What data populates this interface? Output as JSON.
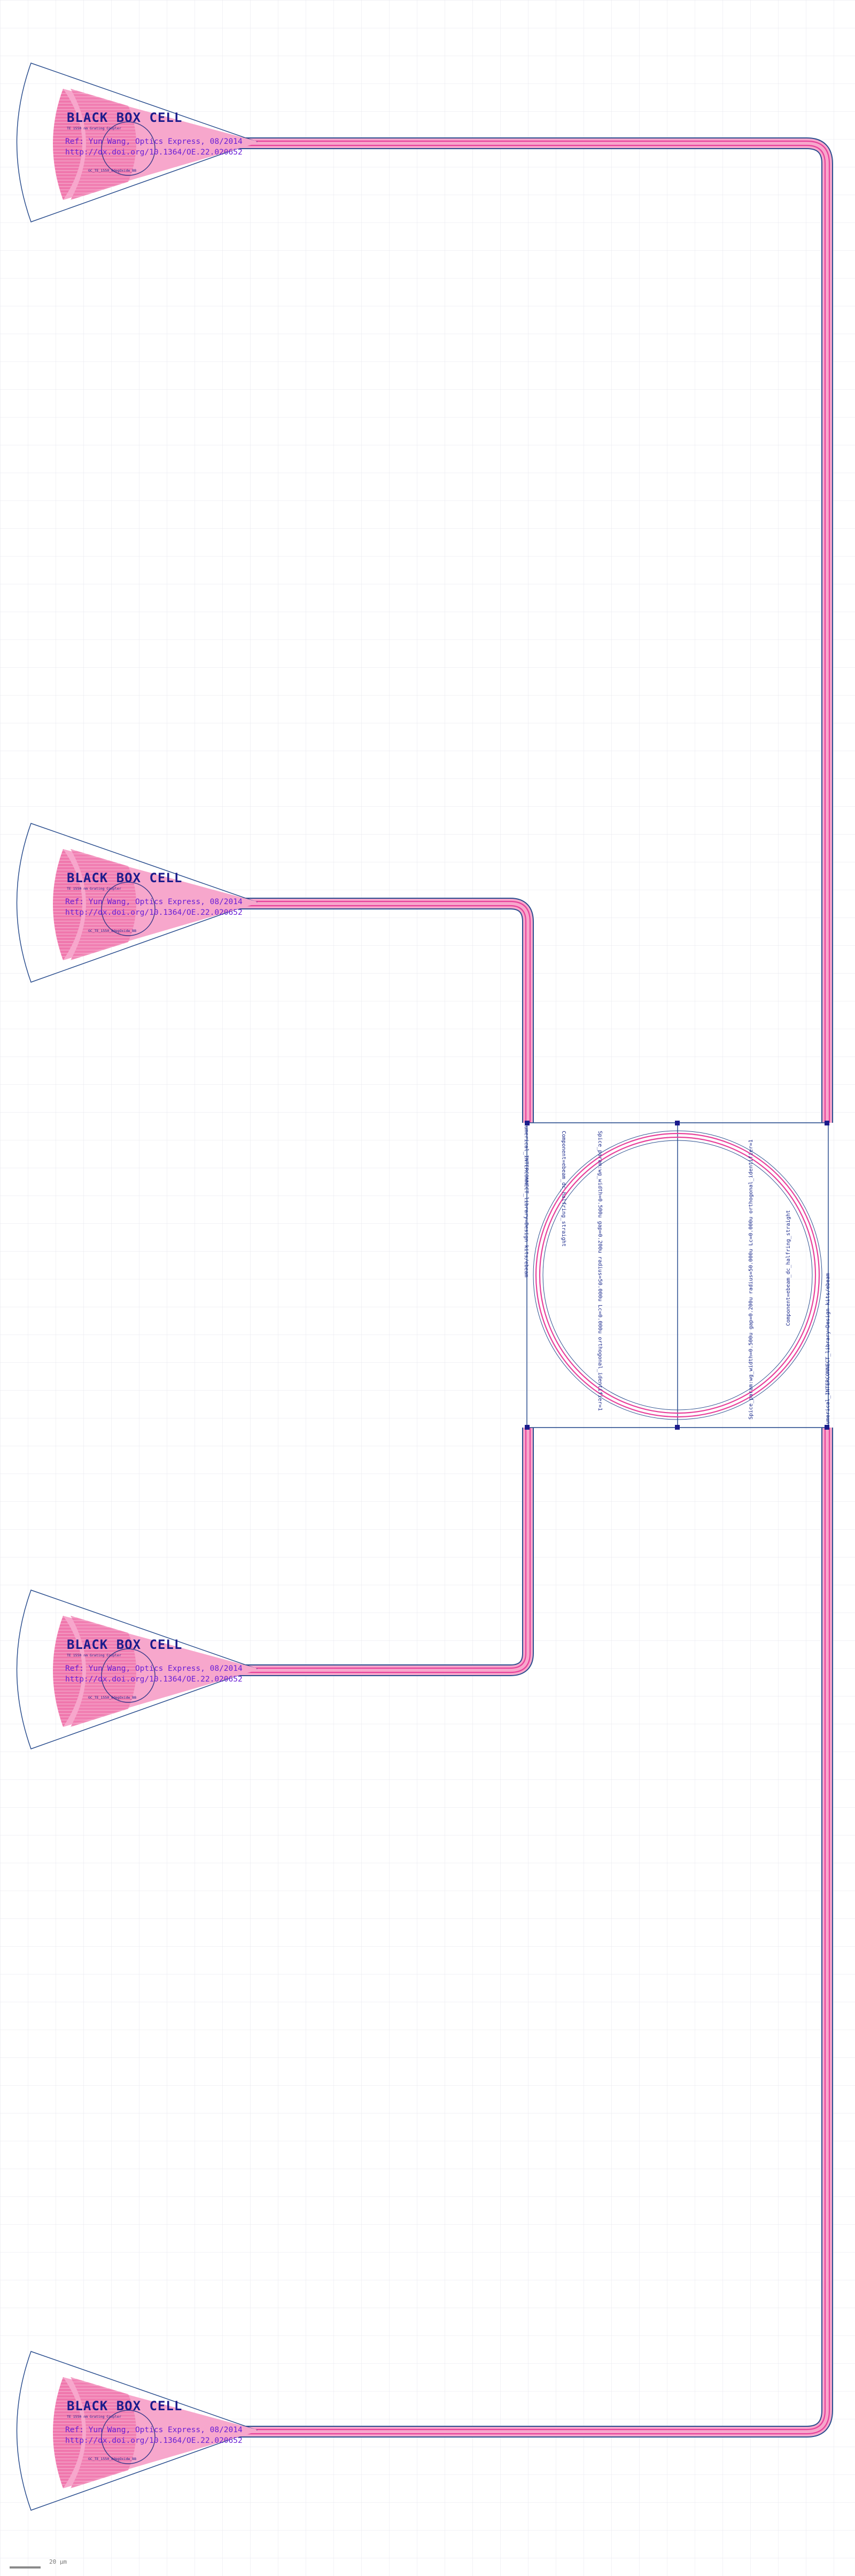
{
  "colors": {
    "background": "#ffffff",
    "grid": "#e4e6ec",
    "outline": "#2c4f8f",
    "waveguide": "#e8419b",
    "waveguide_fill": "#f7a7cc",
    "grating_fill": "#f077ad",
    "text_dark": "#1c1c8c",
    "text_purple": "#6a1fd6"
  },
  "grating_coupler": {
    "title": "BLACK BOX CELL",
    "subtitle": "TE 1550 nm Grating Coupler",
    "ref_line": "Ref: Yun Wang, Optics Express, 08/2014",
    "url_line": "http://dx.doi.org/10.1364/OE.22.020652",
    "caption": "GC_TE_1550_8degOxide_BB"
  },
  "grating_couplers": [
    {
      "id": "gc1",
      "port": "opt_in_1"
    },
    {
      "id": "gc2",
      "port": "opt_in_2"
    },
    {
      "id": "gc3",
      "port": "opt_in_3"
    },
    {
      "id": "gc4",
      "port": "opt_in_4"
    }
  ],
  "ring": {
    "spice_param": "Spice_param:wg_width=0.500u gap=0.200u radius=50.000u Lc=0.000u orthogonal_identifier=1",
    "component": "Component=ebeam_dc_halfring_straight",
    "lumerical": "Lumerical_INTERCONNECT_library=Design kits/ebeam",
    "spice_param_2": "Spice_param:wg_width=0.500u gap=0.200u radius=50.000u Lc=0.000u orthogonal_identifier=1",
    "component_2": "Component=ebeam_dc_halfring_straight",
    "lumerical_2": "Lumerical_INTERCONNECT_library=Design kits/ebeam"
  },
  "scale_bar": {
    "label": "20 μm"
  }
}
